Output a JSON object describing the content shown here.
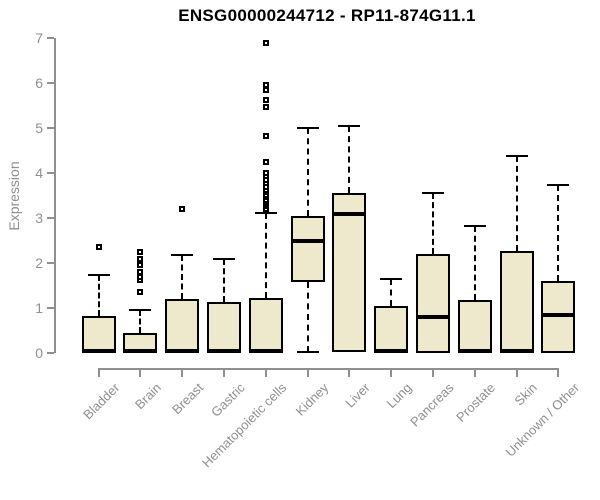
{
  "chart_data": {
    "type": "boxplot",
    "title": "ENSG00000244712 - RP11-874G11.1",
    "xlabel": "",
    "ylabel": "Expression",
    "ylim": [
      0,
      7
    ],
    "yticks": [
      0,
      1,
      2,
      3,
      4,
      5,
      6,
      7
    ],
    "grid": false,
    "legend": false,
    "categories": [
      "Bladder",
      "Brain",
      "Breast",
      "Gastric",
      "Hematopoietic cells",
      "Kidney",
      "Liver",
      "Lung",
      "Pancreas",
      "Prostate",
      "Skin",
      "Unknown / Other"
    ],
    "boxes": [
      {
        "category": "Bladder",
        "q1": 0,
        "median": 0.05,
        "q3": 0.82,
        "whisker_low": 0,
        "whisker_high": 1.73,
        "outliers": [
          2.36
        ]
      },
      {
        "category": "Brain",
        "q1": 0,
        "median": 0.05,
        "q3": 0.45,
        "whisker_low": 0,
        "whisker_high": 0.96,
        "outliers": [
          1.36,
          1.62,
          1.7,
          1.81,
          1.96,
          2.08,
          2.25
        ]
      },
      {
        "category": "Breast",
        "q1": 0,
        "median": 0.05,
        "q3": 1.2,
        "whisker_low": 0,
        "whisker_high": 2.18,
        "outliers": [
          3.2
        ]
      },
      {
        "category": "Gastric",
        "q1": 0,
        "median": 0.05,
        "q3": 1.13,
        "whisker_low": 0,
        "whisker_high": 2.08,
        "outliers": []
      },
      {
        "category": "Hematopoietic cells",
        "q1": 0,
        "median": 0.05,
        "q3": 1.22,
        "whisker_low": 0,
        "whisker_high": 3.12,
        "outliers": [
          3.21,
          3.26,
          3.31,
          3.36,
          3.41,
          3.46,
          3.51,
          3.57,
          3.63,
          3.7,
          3.77,
          3.85,
          3.93,
          4.0,
          4.24,
          4.82,
          5.46,
          5.62,
          5.84,
          5.96,
          6.88
        ]
      },
      {
        "category": "Kidney",
        "q1": 1.58,
        "median": 2.48,
        "q3": 3.05,
        "whisker_low": 0.02,
        "whisker_high": 5.0,
        "outliers": []
      },
      {
        "category": "Liver",
        "q1": 0.02,
        "median": 3.08,
        "q3": 3.55,
        "whisker_low": 0.02,
        "whisker_high": 5.05,
        "outliers": []
      },
      {
        "category": "Lung",
        "q1": 0,
        "median": 0.05,
        "q3": 1.05,
        "whisker_low": 0,
        "whisker_high": 1.65,
        "outliers": []
      },
      {
        "category": "Pancreas",
        "q1": 0,
        "median": 0.8,
        "q3": 2.2,
        "whisker_low": 0,
        "whisker_high": 3.55,
        "outliers": []
      },
      {
        "category": "Prostate",
        "q1": 0,
        "median": 0.05,
        "q3": 1.18,
        "whisker_low": 0,
        "whisker_high": 2.82,
        "outliers": []
      },
      {
        "category": "Skin",
        "q1": 0,
        "median": 0.05,
        "q3": 2.27,
        "whisker_low": 0,
        "whisker_high": 4.38,
        "outliers": []
      },
      {
        "category": "Unknown / Other",
        "q1": 0,
        "median": 0.85,
        "q3": 1.6,
        "whisker_low": 0,
        "whisker_high": 3.73,
        "outliers": []
      }
    ],
    "colors": {
      "box_fill": "#eee8cd",
      "box_border": "#000000",
      "median": "#000000",
      "whisker": "#000000",
      "outlier_border": "#000000",
      "outlier_fill": "#ffffff",
      "axis": "#8f8f8f",
      "tick_text": "#8f8f8f",
      "title": "#000000",
      "background": "#ffffff"
    }
  }
}
